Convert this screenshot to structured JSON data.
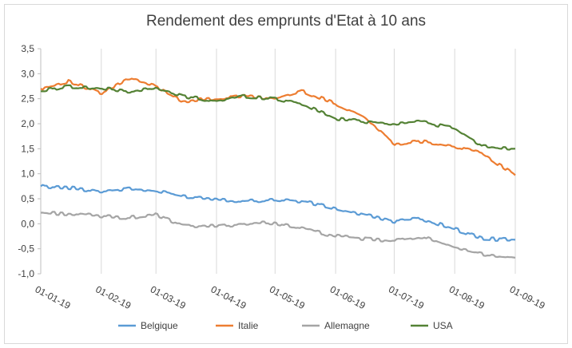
{
  "chart_data": {
    "type": "line",
    "title": "Rendement des emprunts d'Etat à 10 ans",
    "xlabel": "",
    "ylabel": "",
    "ylim": [
      -1.0,
      3.5
    ],
    "y_ticks": [
      "3,5",
      "3,0",
      "2,5",
      "2,0",
      "1,5",
      "1,0",
      "0,5",
      "0,0",
      "-0,5",
      "-1,0"
    ],
    "x_ticks": [
      "01-01-19",
      "01-02-19",
      "01-03-19",
      "01-04-19",
      "01-05-19",
      "01-06-19",
      "01-07-19",
      "01-08-19",
      "01-09-19"
    ],
    "x_range": [
      "2019-01-01",
      "2019-09-01"
    ],
    "grid": "vertical-monthly",
    "legend_position": "bottom",
    "x": [
      "2019-01-01",
      "2019-01-15",
      "2019-02-01",
      "2019-02-15",
      "2019-03-01",
      "2019-03-15",
      "2019-04-01",
      "2019-04-15",
      "2019-05-01",
      "2019-05-15",
      "2019-06-01",
      "2019-06-15",
      "2019-07-01",
      "2019-07-15",
      "2019-08-01",
      "2019-08-15",
      "2019-09-01"
    ],
    "series": [
      {
        "name": "Belgique",
        "color": "#5b9bd5",
        "values": [
          0.75,
          0.72,
          0.65,
          0.7,
          0.65,
          0.55,
          0.5,
          0.45,
          0.48,
          0.45,
          0.3,
          0.18,
          0.05,
          0.1,
          -0.1,
          -0.3,
          -0.32
        ]
      },
      {
        "name": "Italie",
        "color": "#ed7d31",
        "values": [
          2.7,
          2.85,
          2.6,
          2.9,
          2.75,
          2.45,
          2.5,
          2.55,
          2.5,
          2.65,
          2.4,
          2.15,
          1.6,
          1.65,
          1.55,
          1.4,
          0.97
        ]
      },
      {
        "name": "Allemagne",
        "color": "#a5a5a5",
        "values": [
          0.22,
          0.2,
          0.15,
          0.12,
          0.18,
          -0.05,
          -0.05,
          0.0,
          0.02,
          -0.1,
          -0.25,
          -0.3,
          -0.35,
          -0.25,
          -0.5,
          -0.6,
          -0.68
        ]
      },
      {
        "name": "USA",
        "color": "#548235",
        "values": [
          2.65,
          2.75,
          2.7,
          2.65,
          2.7,
          2.55,
          2.45,
          2.55,
          2.5,
          2.4,
          2.1,
          2.05,
          2.0,
          2.05,
          1.9,
          1.55,
          1.5
        ]
      }
    ]
  }
}
